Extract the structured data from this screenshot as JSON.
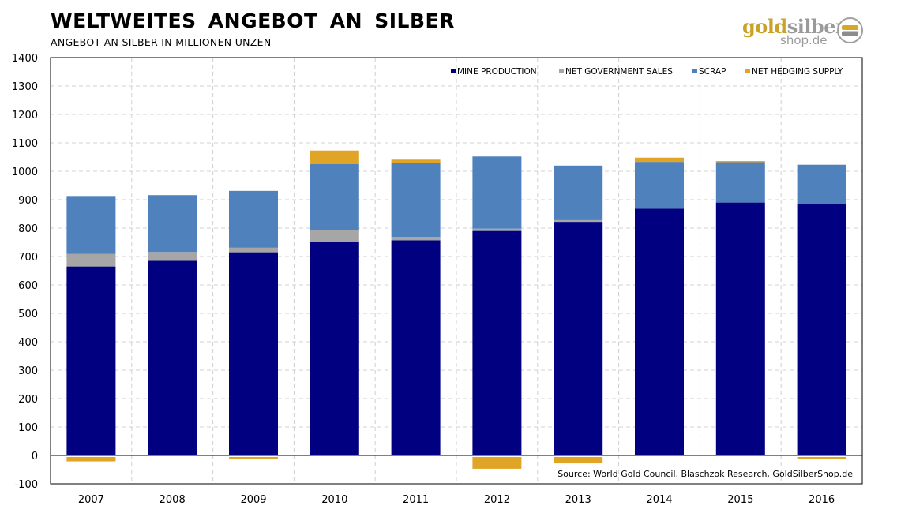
{
  "header": {
    "title": "WELTWEITES  ANGEBOT  AN  SILBER",
    "subtitle": "ANGEBOT AN SILBER IN MILLIONEN UNZEN"
  },
  "logo": {
    "gold": "gold",
    "silber": "silber",
    "shop": "shop.de"
  },
  "chart_data": {
    "type": "bar",
    "stacked": true,
    "categories": [
      "2007",
      "2008",
      "2009",
      "2010",
      "2011",
      "2012",
      "2013",
      "2014",
      "2015",
      "2016"
    ],
    "series": [
      {
        "name": "MINE PRODUCTION",
        "color": "#000080",
        "values": [
          665,
          685,
          715,
          750,
          757,
          790,
          822,
          868,
          890,
          885
        ]
      },
      {
        "name": "NET GOVERNMENT SALES",
        "color": "#a6a6a6",
        "values": [
          44,
          31,
          16,
          44,
          12,
          8,
          6,
          0,
          0,
          0
        ]
      },
      {
        "name": "SCRAP",
        "color": "#4f81bd",
        "values": [
          204,
          200,
          200,
          231,
          260,
          254,
          192,
          165,
          142,
          138
        ]
      },
      {
        "name": "NET HEDGING SUPPLY",
        "color": "#e0a526",
        "values": [
          -21,
          0,
          -11,
          48,
          12,
          -47,
          -28,
          15,
          4,
          -13
        ]
      }
    ],
    "ylim": [
      -100,
      1400
    ],
    "yticks": [
      -100,
      0,
      100,
      200,
      300,
      400,
      500,
      600,
      700,
      800,
      900,
      1000,
      1100,
      1200,
      1300,
      1400
    ],
    "grid": true,
    "legend_position": "top-right",
    "source": "Source: World Gold Council, Blaschzok Research, GoldSilberShop.de"
  }
}
